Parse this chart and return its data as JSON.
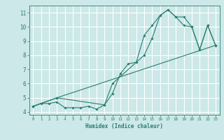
{
  "xlabel": "Humidex (Indice chaleur)",
  "bg_color": "#cce8e8",
  "grid_color": "#ffffff",
  "line_color": "#2a7d6f",
  "xlim": [
    -0.5,
    23.5
  ],
  "ylim": [
    3.8,
    11.5
  ],
  "xticks": [
    0,
    1,
    2,
    3,
    4,
    5,
    6,
    7,
    8,
    9,
    10,
    11,
    12,
    13,
    14,
    15,
    16,
    17,
    18,
    19,
    20,
    21,
    22,
    23
  ],
  "yticks": [
    4,
    5,
    6,
    7,
    8,
    9,
    10,
    11
  ],
  "line1_x": [
    0,
    1,
    2,
    3,
    4,
    5,
    6,
    7,
    8,
    9,
    10,
    11,
    12,
    13,
    14,
    15,
    16,
    17,
    18,
    19,
    20,
    21,
    22,
    23
  ],
  "line1_y": [
    4.4,
    4.6,
    4.6,
    4.7,
    4.3,
    4.3,
    4.3,
    4.4,
    4.2,
    4.5,
    5.3,
    6.7,
    7.4,
    7.5,
    9.4,
    10.1,
    10.8,
    11.2,
    10.7,
    10.7,
    10.0,
    8.4,
    10.1,
    8.7
  ],
  "line2_x": [
    0,
    3,
    9,
    10,
    14,
    15,
    16,
    17,
    18,
    19,
    20,
    21,
    22,
    23
  ],
  "line2_y": [
    4.4,
    5.0,
    4.5,
    6.0,
    8.0,
    9.2,
    10.8,
    11.2,
    10.7,
    10.1,
    10.0,
    8.4,
    10.1,
    8.7
  ],
  "line3_x": [
    0,
    3,
    23
  ],
  "line3_y": [
    4.4,
    5.0,
    8.7
  ]
}
